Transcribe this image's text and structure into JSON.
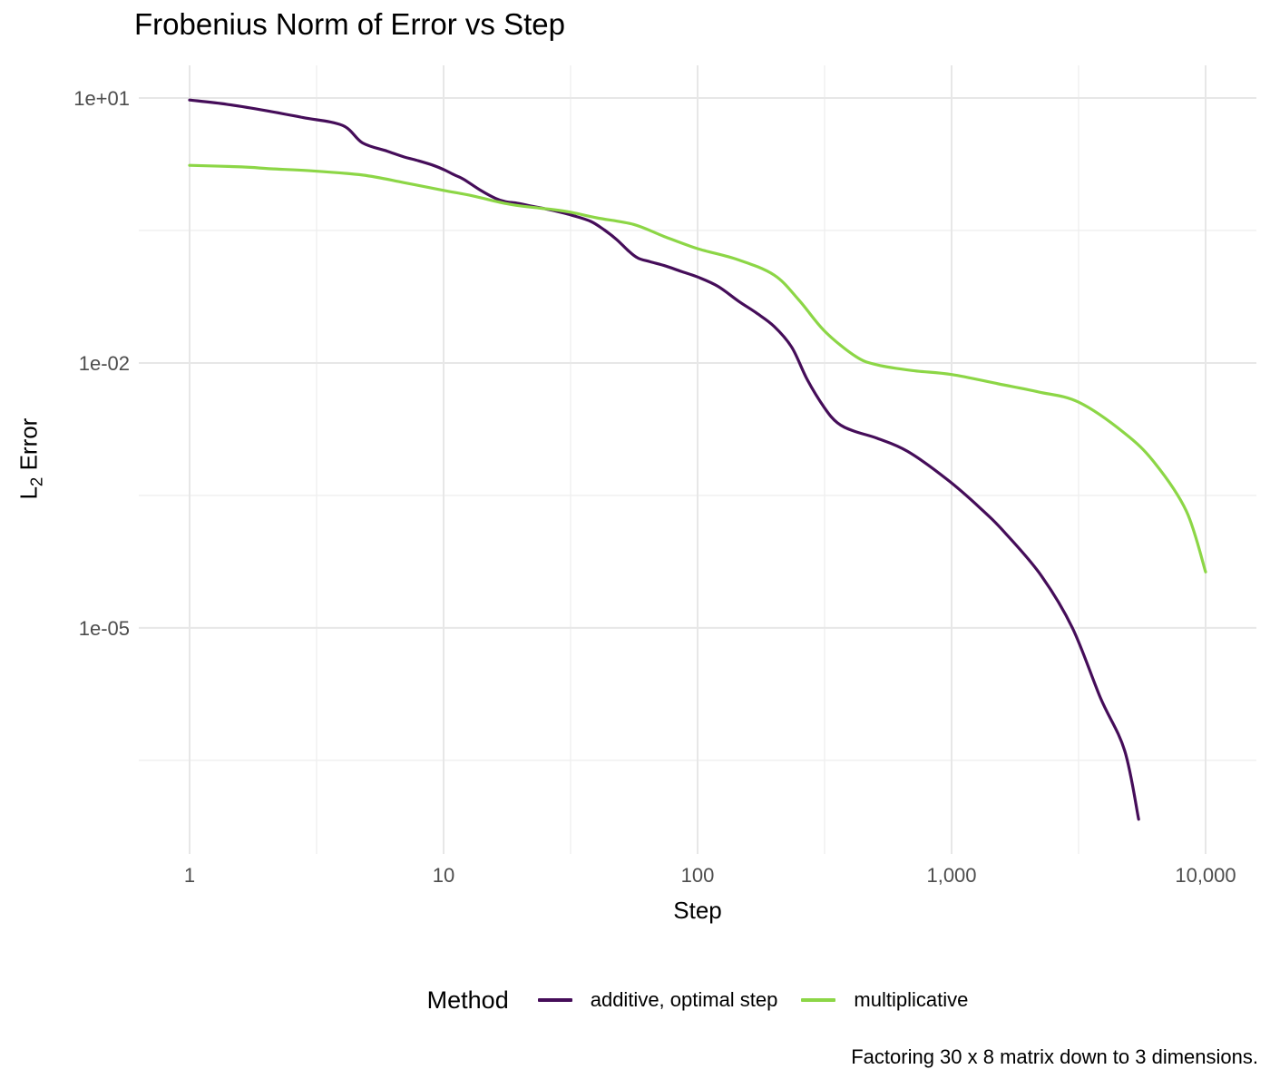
{
  "title": "Frobenius Norm of Error vs Step",
  "caption": "Factoring 30 x 8 matrix down to 3 dimensions.",
  "legend": {
    "title": "Method",
    "items": [
      {
        "label": "additive, optimal step",
        "color": "#450D59"
      },
      {
        "label": "multiplicative",
        "color": "#8CD646"
      }
    ]
  },
  "chart_data": {
    "type": "line",
    "title": "Frobenius Norm of Error vs Step",
    "xlabel": "Step",
    "ylabel": "L2 Error",
    "ylabel_parts": {
      "main": "L",
      "sub": "2",
      "rest": " Error"
    },
    "x_scale": "log10",
    "y_scale": "log10",
    "grid": true,
    "legend_position": "bottom",
    "axes": {
      "x": {
        "title": "Step",
        "log_min": -0.2,
        "log_max": 4.2,
        "ticks": [
          {
            "v": 0,
            "label": "1"
          },
          {
            "v": 1,
            "label": "10"
          },
          {
            "v": 2,
            "label": "100"
          },
          {
            "v": 3,
            "label": "1,000"
          },
          {
            "v": 4,
            "label": "10,000"
          }
        ],
        "minor": [
          0.5,
          1.5,
          2.5,
          3.5
        ]
      },
      "y": {
        "title": "L2 Error",
        "log_min": -7.56,
        "log_max": 1.37,
        "ticks": [
          {
            "v": 1,
            "label": "1e+01"
          },
          {
            "v": -2,
            "label": "1e-02"
          },
          {
            "v": -5,
            "label": "1e-05"
          }
        ],
        "minor": [
          -0.5,
          -3.5,
          -6.5
        ]
      }
    },
    "series": [
      {
        "name": "additive, optimal step",
        "color": "#450D59",
        "points": [
          [
            1,
            9.5
          ],
          [
            1.4,
            8.5
          ],
          [
            2,
            7.2
          ],
          [
            2.8,
            6.0
          ],
          [
            4,
            4.9
          ],
          [
            4.8,
            3.1
          ],
          [
            6,
            2.5
          ],
          [
            7,
            2.15
          ],
          [
            7.7,
            2.0
          ],
          [
            9,
            1.75
          ],
          [
            10,
            1.55
          ],
          [
            11,
            1.35
          ],
          [
            12,
            1.2
          ],
          [
            14,
            0.9
          ],
          [
            16,
            0.73
          ],
          [
            17.5,
            0.67
          ],
          [
            19.5,
            0.645
          ],
          [
            22,
            0.6
          ],
          [
            26,
            0.545
          ],
          [
            32,
            0.47
          ],
          [
            38,
            0.4
          ],
          [
            43,
            0.32
          ],
          [
            48,
            0.25
          ],
          [
            53,
            0.19
          ],
          [
            58,
            0.155
          ],
          [
            65,
            0.14
          ],
          [
            75,
            0.125
          ],
          [
            86,
            0.109
          ],
          [
            100,
            0.094
          ],
          [
            120,
            0.074
          ],
          [
            145,
            0.05
          ],
          [
            170,
            0.037
          ],
          [
            200,
            0.026
          ],
          [
            235,
            0.015
          ],
          [
            270,
            0.0065
          ],
          [
            316,
            0.0031
          ],
          [
            355,
            0.0021
          ],
          [
            410,
            0.0017
          ],
          [
            510,
            0.0014
          ],
          [
            670,
            0.001
          ],
          [
            960,
            0.00048
          ],
          [
            1290,
            0.00023
          ],
          [
            1620,
            0.00012
          ],
          [
            2240,
            4e-05
          ],
          [
            2990,
            1e-05
          ],
          [
            3860,
            1.6e-06
          ],
          [
            4800,
            4.1e-07
          ],
          [
            5450,
            6.8e-08
          ]
        ]
      },
      {
        "name": "multiplicative",
        "color": "#8CD646",
        "points": [
          [
            1,
            1.73
          ],
          [
            1.6,
            1.66
          ],
          [
            2.1,
            1.58
          ],
          [
            3,
            1.5
          ],
          [
            4.8,
            1.34
          ],
          [
            7,
            1.1
          ],
          [
            10,
            0.9
          ],
          [
            13,
            0.78
          ],
          [
            18,
            0.63
          ],
          [
            24,
            0.565
          ],
          [
            26.4,
            0.55
          ],
          [
            31.6,
            0.51
          ],
          [
            40,
            0.44
          ],
          [
            56,
            0.37
          ],
          [
            74,
            0.27
          ],
          [
            100,
            0.197
          ],
          [
            144,
            0.148
          ],
          [
            200,
            0.099
          ],
          [
            250,
            0.052
          ],
          [
            316,
            0.023
          ],
          [
            420,
            0.0118
          ],
          [
            510,
            0.0095
          ],
          [
            700,
            0.0082
          ],
          [
            1000,
            0.0074
          ],
          [
            1530,
            0.0058
          ],
          [
            2200,
            0.0047
          ],
          [
            3160,
            0.0036
          ],
          [
            4800,
            0.0016
          ],
          [
            6300,
            0.00074
          ],
          [
            8400,
            0.00021
          ],
          [
            10000,
            4.3e-05
          ]
        ]
      }
    ],
    "style": {
      "grid_major_color": "#E7E7E7",
      "grid_minor_color": "#EFEFEF",
      "tick_label_color": "#4D4D4D",
      "text_color": "#000000",
      "background": "#FFFFFF"
    }
  }
}
